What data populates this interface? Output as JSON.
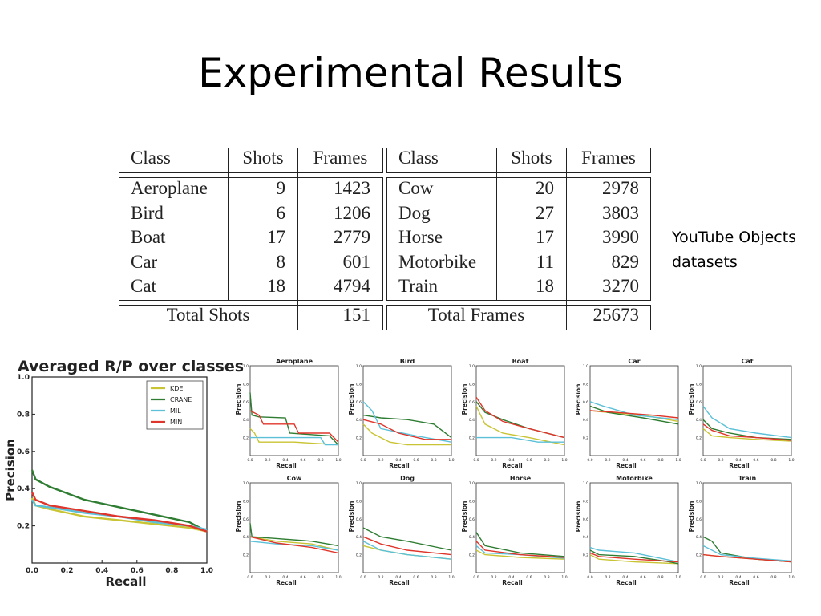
{
  "slide": {
    "title": "Experimental Results",
    "note_lines": [
      "YouTube Objects",
      "datasets"
    ]
  },
  "table": {
    "headers": [
      "Class",
      "Shots",
      "Frames",
      "Class",
      "Shots",
      "Frames"
    ],
    "left_rows": [
      [
        "Aeroplane",
        "9",
        "1423"
      ],
      [
        "Bird",
        "6",
        "1206"
      ],
      [
        "Boat",
        "17",
        "2779"
      ],
      [
        "Car",
        "8",
        "601"
      ],
      [
        "Cat",
        "18",
        "4794"
      ]
    ],
    "right_rows": [
      [
        "Cow",
        "20",
        "2978"
      ],
      [
        "Dog",
        "27",
        "3803"
      ],
      [
        "Horse",
        "17",
        "3990"
      ],
      [
        "Motorbike",
        "11",
        "829"
      ],
      [
        "Train",
        "18",
        "3270"
      ]
    ],
    "total_shots_label": "Total Shots",
    "total_shots_value": "151",
    "total_frames_label": "Total Frames",
    "total_frames_value": "25673"
  },
  "colors": {
    "KDE": "#c9c434",
    "CRANE": "#2e7d32",
    "MIL": "#5bc0d8",
    "MIN": "#e0352b"
  },
  "chart_data": [
    {
      "type": "line",
      "title": "Averaged R/P over classes",
      "xlabel": "Recall",
      "ylabel": "Precision",
      "xlim": [
        0,
        1
      ],
      "ylim": [
        0.0,
        1.0
      ],
      "xticks": [
        "0.0",
        "0.2",
        "0.4",
        "0.6",
        "0.8",
        "1.0"
      ],
      "yticks": [
        "0.2",
        "0.4",
        "0.6",
        "0.8",
        "1.0"
      ],
      "legend": "top-right",
      "series": [
        {
          "name": "KDE",
          "x": [
            0,
            0.02,
            0.1,
            0.3,
            0.5,
            0.7,
            0.9,
            1.0
          ],
          "y": [
            0.35,
            0.31,
            0.29,
            0.25,
            0.23,
            0.21,
            0.19,
            0.17
          ]
        },
        {
          "name": "CRANE",
          "x": [
            0,
            0.02,
            0.1,
            0.3,
            0.5,
            0.7,
            0.9,
            1.0
          ],
          "y": [
            0.5,
            0.45,
            0.41,
            0.34,
            0.3,
            0.26,
            0.22,
            0.17
          ]
        },
        {
          "name": "MIL",
          "x": [
            0,
            0.02,
            0.1,
            0.3,
            0.5,
            0.7,
            0.9,
            1.0
          ],
          "y": [
            0.34,
            0.31,
            0.3,
            0.27,
            0.25,
            0.22,
            0.2,
            0.18
          ]
        },
        {
          "name": "MIN",
          "x": [
            0,
            0.02,
            0.1,
            0.3,
            0.5,
            0.7,
            0.9,
            1.0
          ],
          "y": [
            0.38,
            0.34,
            0.31,
            0.28,
            0.25,
            0.23,
            0.2,
            0.17
          ]
        }
      ]
    },
    {
      "type": "line",
      "title": "Aeroplane",
      "xlabel": "Recall",
      "ylabel": "Precision",
      "xlim": [
        0,
        1
      ],
      "ylim": [
        0,
        1
      ],
      "series": [
        {
          "name": "KDE",
          "x": [
            0,
            0.05,
            0.1,
            0.3,
            0.5,
            1.0
          ],
          "y": [
            0.3,
            0.25,
            0.15,
            0.15,
            0.15,
            0.12
          ]
        },
        {
          "name": "CRANE",
          "x": [
            0,
            0.02,
            0.1,
            0.4,
            0.45,
            0.9,
            1.0
          ],
          "y": [
            0.7,
            0.45,
            0.43,
            0.42,
            0.25,
            0.22,
            0.12
          ]
        },
        {
          "name": "MIL",
          "x": [
            0,
            0.1,
            0.8,
            0.85,
            1.0
          ],
          "y": [
            0.2,
            0.2,
            0.2,
            0.12,
            0.12
          ]
        },
        {
          "name": "MIN",
          "x": [
            0,
            0.1,
            0.15,
            0.5,
            0.55,
            0.9,
            1.0
          ],
          "y": [
            0.5,
            0.45,
            0.35,
            0.35,
            0.25,
            0.25,
            0.15
          ]
        }
      ]
    },
    {
      "type": "line",
      "title": "Bird",
      "xlabel": "Recall",
      "ylabel": "Precision",
      "xlim": [
        0,
        1
      ],
      "ylim": [
        0,
        1
      ],
      "series": [
        {
          "name": "KDE",
          "x": [
            0,
            0.1,
            0.3,
            0.5,
            1.0
          ],
          "y": [
            0.35,
            0.25,
            0.15,
            0.12,
            0.12
          ]
        },
        {
          "name": "CRANE",
          "x": [
            0,
            0.2,
            0.5,
            0.8,
            1.0
          ],
          "y": [
            0.45,
            0.42,
            0.4,
            0.35,
            0.2
          ]
        },
        {
          "name": "MIL",
          "x": [
            0,
            0.1,
            0.2,
            0.6,
            1.0
          ],
          "y": [
            0.6,
            0.5,
            0.3,
            0.22,
            0.15
          ]
        },
        {
          "name": "MIN",
          "x": [
            0,
            0.2,
            0.4,
            0.7,
            1.0
          ],
          "y": [
            0.4,
            0.35,
            0.25,
            0.18,
            0.18
          ]
        }
      ]
    },
    {
      "type": "line",
      "title": "Boat",
      "xlabel": "Recall",
      "ylabel": "Precision",
      "xlim": [
        0,
        1
      ],
      "ylim": [
        0,
        1
      ],
      "series": [
        {
          "name": "KDE",
          "x": [
            0,
            0.1,
            0.3,
            0.6,
            1.0
          ],
          "y": [
            0.55,
            0.35,
            0.25,
            0.2,
            0.12
          ]
        },
        {
          "name": "CRANE",
          "x": [
            0,
            0.1,
            0.3,
            0.6,
            1.0
          ],
          "y": [
            0.6,
            0.48,
            0.4,
            0.3,
            0.2
          ]
        },
        {
          "name": "MIL",
          "x": [
            0,
            0.4,
            0.7,
            1.0
          ],
          "y": [
            0.2,
            0.2,
            0.15,
            0.15
          ]
        },
        {
          "name": "MIN",
          "x": [
            0,
            0.1,
            0.3,
            0.6,
            1.0
          ],
          "y": [
            0.65,
            0.5,
            0.38,
            0.3,
            0.2
          ]
        }
      ]
    },
    {
      "type": "line",
      "title": "Car",
      "xlabel": "Recall",
      "ylabel": "Precision",
      "xlim": [
        0,
        1
      ],
      "ylim": [
        0,
        1
      ],
      "series": [
        {
          "name": "KDE",
          "x": [
            0,
            0.2,
            0.6,
            1.0
          ],
          "y": [
            0.5,
            0.48,
            0.45,
            0.38
          ]
        },
        {
          "name": "CRANE",
          "x": [
            0,
            0.2,
            0.6,
            1.0
          ],
          "y": [
            0.55,
            0.48,
            0.42,
            0.35
          ]
        },
        {
          "name": "MIL",
          "x": [
            0,
            0.15,
            0.5,
            1.0
          ],
          "y": [
            0.6,
            0.55,
            0.45,
            0.4
          ]
        },
        {
          "name": "MIN",
          "x": [
            0,
            0.3,
            0.7,
            1.0
          ],
          "y": [
            0.5,
            0.48,
            0.45,
            0.42
          ]
        }
      ]
    },
    {
      "type": "line",
      "title": "Cat",
      "xlabel": "Recall",
      "ylabel": "Precision",
      "xlim": [
        0,
        1
      ],
      "ylim": [
        0,
        1
      ],
      "series": [
        {
          "name": "KDE",
          "x": [
            0,
            0.1,
            0.3,
            0.6,
            1.0
          ],
          "y": [
            0.3,
            0.22,
            0.2,
            0.18,
            0.16
          ]
        },
        {
          "name": "CRANE",
          "x": [
            0,
            0.1,
            0.3,
            0.6,
            1.0
          ],
          "y": [
            0.4,
            0.3,
            0.25,
            0.2,
            0.18
          ]
        },
        {
          "name": "MIL",
          "x": [
            0,
            0.1,
            0.3,
            0.6,
            1.0
          ],
          "y": [
            0.55,
            0.42,
            0.3,
            0.25,
            0.2
          ]
        },
        {
          "name": "MIN",
          "x": [
            0,
            0.1,
            0.3,
            0.6,
            1.0
          ],
          "y": [
            0.35,
            0.28,
            0.22,
            0.2,
            0.17
          ]
        }
      ]
    },
    {
      "type": "line",
      "title": "Cow",
      "xlabel": "Recall",
      "ylabel": "Precision",
      "xlim": [
        0,
        1
      ],
      "ylim": [
        0,
        1
      ],
      "series": [
        {
          "name": "KDE",
          "x": [
            0,
            0.3,
            0.7,
            1.0
          ],
          "y": [
            0.4,
            0.35,
            0.32,
            0.25
          ]
        },
        {
          "name": "CRANE",
          "x": [
            0,
            0.02,
            0.3,
            0.7,
            1.0
          ],
          "y": [
            0.55,
            0.4,
            0.38,
            0.35,
            0.3
          ]
        },
        {
          "name": "MIL",
          "x": [
            0,
            0.3,
            0.7,
            1.0
          ],
          "y": [
            0.35,
            0.32,
            0.3,
            0.25
          ]
        },
        {
          "name": "MIN",
          "x": [
            0,
            0.3,
            0.7,
            1.0
          ],
          "y": [
            0.4,
            0.33,
            0.28,
            0.22
          ]
        }
      ]
    },
    {
      "type": "line",
      "title": "Dog",
      "xlabel": "Recall",
      "ylabel": "Precision",
      "xlim": [
        0,
        1
      ],
      "ylim": [
        0,
        1
      ],
      "series": [
        {
          "name": "KDE",
          "x": [
            0,
            0.2,
            0.5,
            1.0
          ],
          "y": [
            0.3,
            0.25,
            0.2,
            0.15
          ]
        },
        {
          "name": "CRANE",
          "x": [
            0,
            0.2,
            0.5,
            1.0
          ],
          "y": [
            0.5,
            0.4,
            0.35,
            0.25
          ]
        },
        {
          "name": "MIL",
          "x": [
            0,
            0.2,
            0.5,
            1.0
          ],
          "y": [
            0.35,
            0.25,
            0.2,
            0.15
          ]
        },
        {
          "name": "MIN",
          "x": [
            0,
            0.2,
            0.5,
            1.0
          ],
          "y": [
            0.4,
            0.32,
            0.25,
            0.2
          ]
        }
      ]
    },
    {
      "type": "line",
      "title": "Horse",
      "xlabel": "Recall",
      "ylabel": "Precision",
      "xlim": [
        0,
        1
      ],
      "ylim": [
        0,
        1
      ],
      "series": [
        {
          "name": "KDE",
          "x": [
            0,
            0.1,
            0.5,
            1.0
          ],
          "y": [
            0.25,
            0.2,
            0.17,
            0.15
          ]
        },
        {
          "name": "CRANE",
          "x": [
            0,
            0.1,
            0.5,
            1.0
          ],
          "y": [
            0.45,
            0.3,
            0.22,
            0.18
          ]
        },
        {
          "name": "MIL",
          "x": [
            0,
            0.1,
            0.5,
            1.0
          ],
          "y": [
            0.3,
            0.22,
            0.2,
            0.16
          ]
        },
        {
          "name": "MIN",
          "x": [
            0,
            0.1,
            0.5,
            1.0
          ],
          "y": [
            0.35,
            0.25,
            0.2,
            0.17
          ]
        }
      ]
    },
    {
      "type": "line",
      "title": "Motorbike",
      "xlabel": "Recall",
      "ylabel": "Precision",
      "xlim": [
        0,
        1
      ],
      "ylim": [
        0,
        1
      ],
      "series": [
        {
          "name": "KDE",
          "x": [
            0,
            0.1,
            0.5,
            1.0
          ],
          "y": [
            0.2,
            0.15,
            0.12,
            0.1
          ]
        },
        {
          "name": "CRANE",
          "x": [
            0,
            0.1,
            0.5,
            0.9,
            1.0
          ],
          "y": [
            0.25,
            0.2,
            0.18,
            0.12,
            0.1
          ]
        },
        {
          "name": "MIL",
          "x": [
            0,
            0.1,
            0.5,
            1.0
          ],
          "y": [
            0.28,
            0.25,
            0.22,
            0.12
          ]
        },
        {
          "name": "MIN",
          "x": [
            0,
            0.1,
            0.5,
            1.0
          ],
          "y": [
            0.22,
            0.18,
            0.15,
            0.12
          ]
        }
      ]
    },
    {
      "type": "line",
      "title": "Train",
      "xlabel": "Recall",
      "ylabel": "Precision",
      "xlim": [
        0,
        1
      ],
      "ylim": [
        0,
        1
      ],
      "series": [
        {
          "name": "KDE",
          "x": [
            0,
            0.2,
            0.6,
            1.0
          ],
          "y": [
            0.2,
            0.18,
            0.15,
            0.12
          ]
        },
        {
          "name": "CRANE",
          "x": [
            0,
            0.1,
            0.2,
            0.6,
            1.0
          ],
          "y": [
            0.4,
            0.35,
            0.22,
            0.15,
            0.12
          ]
        },
        {
          "name": "MIL",
          "x": [
            0,
            0.2,
            0.6,
            1.0
          ],
          "y": [
            0.3,
            0.2,
            0.16,
            0.13
          ]
        },
        {
          "name": "MIN",
          "x": [
            0,
            0.2,
            0.6,
            1.0
          ],
          "y": [
            0.2,
            0.18,
            0.15,
            0.12
          ]
        }
      ]
    }
  ]
}
